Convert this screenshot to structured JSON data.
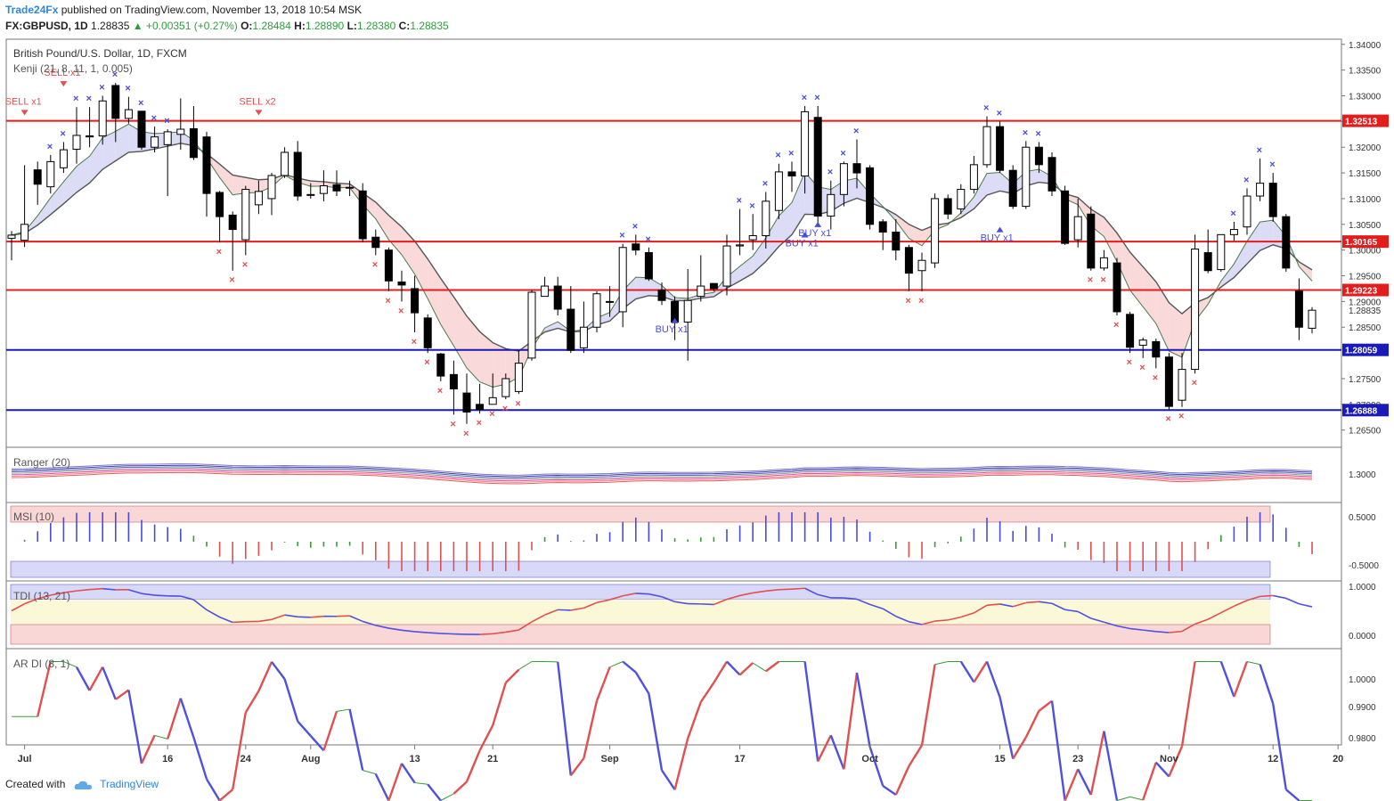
{
  "header": {
    "publisher": "Trade24Fx",
    "published_text": "published on TradingView.com, November 13, 2018 10:54 MSK",
    "symbol": "FX:GBPUSD, 1D",
    "last": "1.28835",
    "change": "+0.00351 (+0.27%)",
    "open_label": "O:",
    "open": "1.28484",
    "high_label": "H:",
    "high": "1.28890",
    "low_label": "L:",
    "low": "1.28380",
    "close_label": "C:",
    "close": "1.28835"
  },
  "colors": {
    "bull_body": "#ffffff",
    "bear_body": "#000000",
    "resistance": "#e31c1c",
    "support": "#1a1ab8",
    "sell_marker": "#e05050",
    "buy_marker": "#4a4ae0"
  },
  "footer": {
    "created_with": "Created with",
    "brand": "TradingView"
  },
  "chart_data": [
    {
      "type": "candlestick",
      "title": "British Pound/U.S. Dollar, 1D, FXCM",
      "indicator": "Kenji (21, 8, 11, 1, 0.005)",
      "ylim": [
        1.262,
        1.341
      ],
      "y_ticks": [
        "1.34000",
        "1.33500",
        "1.33000",
        "1.32500",
        "1.32000",
        "1.31500",
        "1.31000",
        "1.30500",
        "1.30000",
        "1.29500",
        "1.29000",
        "1.28500",
        "1.27500",
        "1.27000",
        "1.26500"
      ],
      "x_ticks": [
        {
          "i": 1,
          "label": "Jul"
        },
        {
          "i": 12,
          "label": "16"
        },
        {
          "i": 18,
          "label": "24"
        },
        {
          "i": 23,
          "label": "Aug"
        },
        {
          "i": 31,
          "label": "13"
        },
        {
          "i": 37,
          "label": "21"
        },
        {
          "i": 46,
          "label": "Sep"
        },
        {
          "i": 56,
          "label": "17"
        },
        {
          "i": 66,
          "label": "Oct"
        },
        {
          "i": 76,
          "label": "15"
        },
        {
          "i": 82,
          "label": "23"
        },
        {
          "i": 89,
          "label": "Nov"
        },
        {
          "i": 97,
          "label": "12"
        },
        {
          "i": 102,
          "label": "20"
        }
      ],
      "price_lines": [
        {
          "value": 1.32513,
          "label": "1.32513",
          "kind": "resistance"
        },
        {
          "value": 1.30165,
          "label": "1.30165",
          "kind": "resistance"
        },
        {
          "value": 1.29223,
          "label": "1.29223",
          "kind": "resistance"
        },
        {
          "value": 1.28059,
          "label": "1.28059",
          "kind": "support"
        },
        {
          "value": 1.26888,
          "label": "1.26888",
          "kind": "support"
        }
      ],
      "current_price": {
        "value": 1.28835,
        "label": "1.28835"
      },
      "candles": [
        [
          1.3023,
          1.3029,
          1.298,
          1.3037
        ],
        [
          1.3019,
          1.305,
          1.3006,
          1.3165
        ],
        [
          1.3156,
          1.3128,
          1.3088,
          1.3172
        ],
        [
          1.3123,
          1.3172,
          1.311,
          1.3185
        ],
        [
          1.316,
          1.3195,
          1.315,
          1.321
        ],
        [
          1.3196,
          1.3223,
          1.3168,
          1.3278
        ],
        [
          1.322,
          1.3222,
          1.32,
          1.3278
        ],
        [
          1.3222,
          1.329,
          1.3205,
          1.33
        ],
        [
          1.332,
          1.3256,
          1.321,
          1.3325
        ],
        [
          1.3256,
          1.3273,
          1.3246,
          1.3298
        ],
        [
          1.327,
          1.32,
          1.3195,
          1.327
        ],
        [
          1.32,
          1.322,
          1.319,
          1.324
        ],
        [
          1.3205,
          1.323,
          1.3105,
          1.3235
        ],
        [
          1.3225,
          1.3235,
          1.3195,
          1.3295
        ],
        [
          1.3236,
          1.318,
          1.3175,
          1.328
        ],
        [
          1.322,
          1.311,
          1.3065,
          1.323
        ],
        [
          1.3112,
          1.3065,
          1.3015,
          1.3115
        ],
        [
          1.3068,
          1.304,
          1.296,
          1.3075
        ],
        [
          1.302,
          1.3118,
          1.299,
          1.3125
        ],
        [
          1.3088,
          1.3114,
          1.307,
          1.3135
        ],
        [
          1.31,
          1.3145,
          1.3068,
          1.315
        ],
        [
          1.3145,
          1.319,
          1.314,
          1.32
        ],
        [
          1.319,
          1.3105,
          1.3096,
          1.3212
        ],
        [
          1.3108,
          1.3108,
          1.31,
          1.313
        ],
        [
          1.311,
          1.3125,
          1.3095,
          1.3155
        ],
        [
          1.3127,
          1.3115,
          1.3105,
          1.3155
        ],
        [
          1.3122,
          1.3122,
          1.3105,
          1.3135
        ],
        [
          1.3115,
          1.3022,
          1.3015,
          1.313
        ],
        [
          1.3025,
          1.3005,
          1.299,
          1.304
        ],
        [
          1.3,
          1.294,
          1.292,
          1.3005
        ],
        [
          1.2938,
          1.2932,
          1.29,
          1.296
        ],
        [
          1.2925,
          1.2878,
          1.284,
          1.295
        ],
        [
          1.2868,
          1.281,
          1.28,
          1.2875
        ],
        [
          1.2798,
          1.2755,
          1.2745,
          1.28
        ],
        [
          1.2758,
          1.273,
          1.268,
          1.2785
        ],
        [
          1.2722,
          1.2685,
          1.2662,
          1.276
        ],
        [
          1.27,
          1.269,
          1.2682,
          1.274
        ],
        [
          1.27,
          1.2713,
          1.27,
          1.276
        ],
        [
          1.2715,
          1.275,
          1.271,
          1.276
        ],
        [
          1.2725,
          1.278,
          1.272,
          1.2805
        ],
        [
          1.279,
          1.2918,
          1.2785,
          1.2922
        ],
        [
          1.291,
          1.293,
          1.291,
          1.2948
        ],
        [
          1.293,
          1.2885,
          1.2873,
          1.2948
        ],
        [
          1.2885,
          1.2805,
          1.28,
          1.293
        ],
        [
          1.281,
          1.285,
          1.28,
          1.29
        ],
        [
          1.285,
          1.2915,
          1.284,
          1.292
        ],
        [
          1.29,
          1.29,
          1.287,
          1.293
        ],
        [
          1.288,
          1.3005,
          1.285,
          1.3012
        ],
        [
          1.3012,
          1.3,
          1.299,
          1.303
        ],
        [
          1.2995,
          1.2944,
          1.294,
          1.3005
        ],
        [
          1.2922,
          1.2902,
          1.2893,
          1.2937
        ],
        [
          1.29,
          1.286,
          1.2825,
          1.291
        ],
        [
          1.286,
          1.2902,
          1.2785,
          1.2963
        ],
        [
          1.291,
          1.293,
          1.29,
          1.299
        ],
        [
          1.2935,
          1.2925,
          1.292,
          1.293
        ],
        [
          1.293,
          1.3008,
          1.2912,
          1.303
        ],
        [
          1.3008,
          1.301,
          1.299,
          1.308
        ],
        [
          1.302,
          1.3028,
          1.3,
          1.307
        ],
        [
          1.3028,
          1.3095,
          1.3003,
          1.3113
        ],
        [
          1.3077,
          1.3152,
          1.306,
          1.3168
        ],
        [
          1.3152,
          1.3144,
          1.3113,
          1.3172
        ],
        [
          1.3144,
          1.3269,
          1.311,
          1.328
        ],
        [
          1.3258,
          1.3066,
          1.3046,
          1.328
        ],
        [
          1.3066,
          1.3108,
          1.304,
          1.3135
        ],
        [
          1.3108,
          1.3168,
          1.3085,
          1.3172
        ],
        [
          1.3168,
          1.315,
          1.312,
          1.3215
        ],
        [
          1.316,
          1.305,
          1.304,
          1.3165
        ],
        [
          1.3055,
          1.3035,
          1.3,
          1.306
        ],
        [
          1.3035,
          1.3,
          1.298,
          1.306
        ],
        [
          1.3005,
          1.2955,
          1.292,
          1.301
        ],
        [
          1.296,
          1.298,
          1.292,
          1.2995
        ],
        [
          1.2975,
          1.31,
          1.2965,
          1.311
        ],
        [
          1.31,
          1.307,
          1.306,
          1.3108
        ],
        [
          1.308,
          1.3118,
          1.307,
          1.3128
        ],
        [
          1.3118,
          1.3166,
          1.311,
          1.3183
        ],
        [
          1.3166,
          1.324,
          1.316,
          1.326
        ],
        [
          1.324,
          1.3155,
          1.315,
          1.325
        ],
        [
          1.3155,
          1.3085,
          1.308,
          1.3165
        ],
        [
          1.3085,
          1.32,
          1.308,
          1.3212
        ],
        [
          1.32,
          1.3166,
          1.315,
          1.321
        ],
        [
          1.318,
          1.3115,
          1.3105,
          1.319
        ],
        [
          1.3115,
          1.3013,
          1.301,
          1.3125
        ],
        [
          1.302,
          1.3065,
          1.3005,
          1.31
        ],
        [
          1.307,
          1.2965,
          1.296,
          1.3085
        ],
        [
          1.2965,
          1.2985,
          1.296,
          1.3
        ],
        [
          1.2975,
          1.288,
          1.2873,
          1.2985
        ],
        [
          1.2875,
          1.2811,
          1.28,
          1.288
        ],
        [
          1.2815,
          1.2825,
          1.279,
          1.283
        ],
        [
          1.2822,
          1.2792,
          1.277,
          1.2828
        ],
        [
          1.2792,
          1.2696,
          1.269,
          1.28
        ],
        [
          1.2708,
          1.2768,
          1.2695,
          1.28
        ],
        [
          1.2768,
          1.3002,
          1.276,
          1.303
        ],
        [
          1.2995,
          1.296,
          1.2955,
          1.304
        ],
        [
          1.2962,
          1.303,
          1.2958,
          1.303
        ],
        [
          1.303,
          1.304,
          1.3018,
          1.3055
        ],
        [
          1.3045,
          1.3105,
          1.303,
          1.312
        ],
        [
          1.3105,
          1.313,
          1.3095,
          1.3178
        ],
        [
          1.313,
          1.3065,
          1.3055,
          1.315
        ],
        [
          1.3065,
          1.2965,
          1.2958,
          1.307
        ],
        [
          1.292,
          1.285,
          1.2825,
          1.2945
        ],
        [
          1.2848,
          1.2883,
          1.2838,
          1.2889
        ]
      ],
      "annotations": [
        {
          "i": 1,
          "text": "SELL x1",
          "kind": "sell",
          "price": 1.3262
        },
        {
          "i": 4,
          "text": "SELL x1",
          "kind": "sell",
          "price": 1.3318
        },
        {
          "i": 19,
          "text": "SELL x2",
          "kind": "sell",
          "price": 1.3262
        },
        {
          "i": 51,
          "text": "BUY x1",
          "kind": "buy",
          "price": 1.2868
        },
        {
          "i": 61,
          "text": "BUY x1",
          "kind": "buy",
          "price": 1.3035
        },
        {
          "i": 62,
          "text": "BUY x1",
          "kind": "buy",
          "price": 1.3055
        },
        {
          "i": 76,
          "text": "BUY x1",
          "kind": "buy",
          "price": 1.3045
        }
      ]
    },
    {
      "type": "line",
      "title": "Ranger (20)",
      "y_ticks": [
        "1.3000"
      ]
    },
    {
      "type": "bar",
      "title": "MSI (10)",
      "y_ticks": [
        "0.5000",
        "-0.5000"
      ],
      "ylim": [
        -0.75,
        0.75
      ]
    },
    {
      "type": "line",
      "title": "TDI (13, 21)",
      "y_ticks": [
        "1.0000",
        "0.0000"
      ],
      "ylim": [
        -0.08,
        1.02
      ]
    },
    {
      "type": "line",
      "title": "AR DI (8, 1)",
      "y_ticks": [
        "1.0000",
        "0.9900",
        "0.9800"
      ],
      "ylim": [
        0.9765,
        1.0045
      ]
    }
  ]
}
